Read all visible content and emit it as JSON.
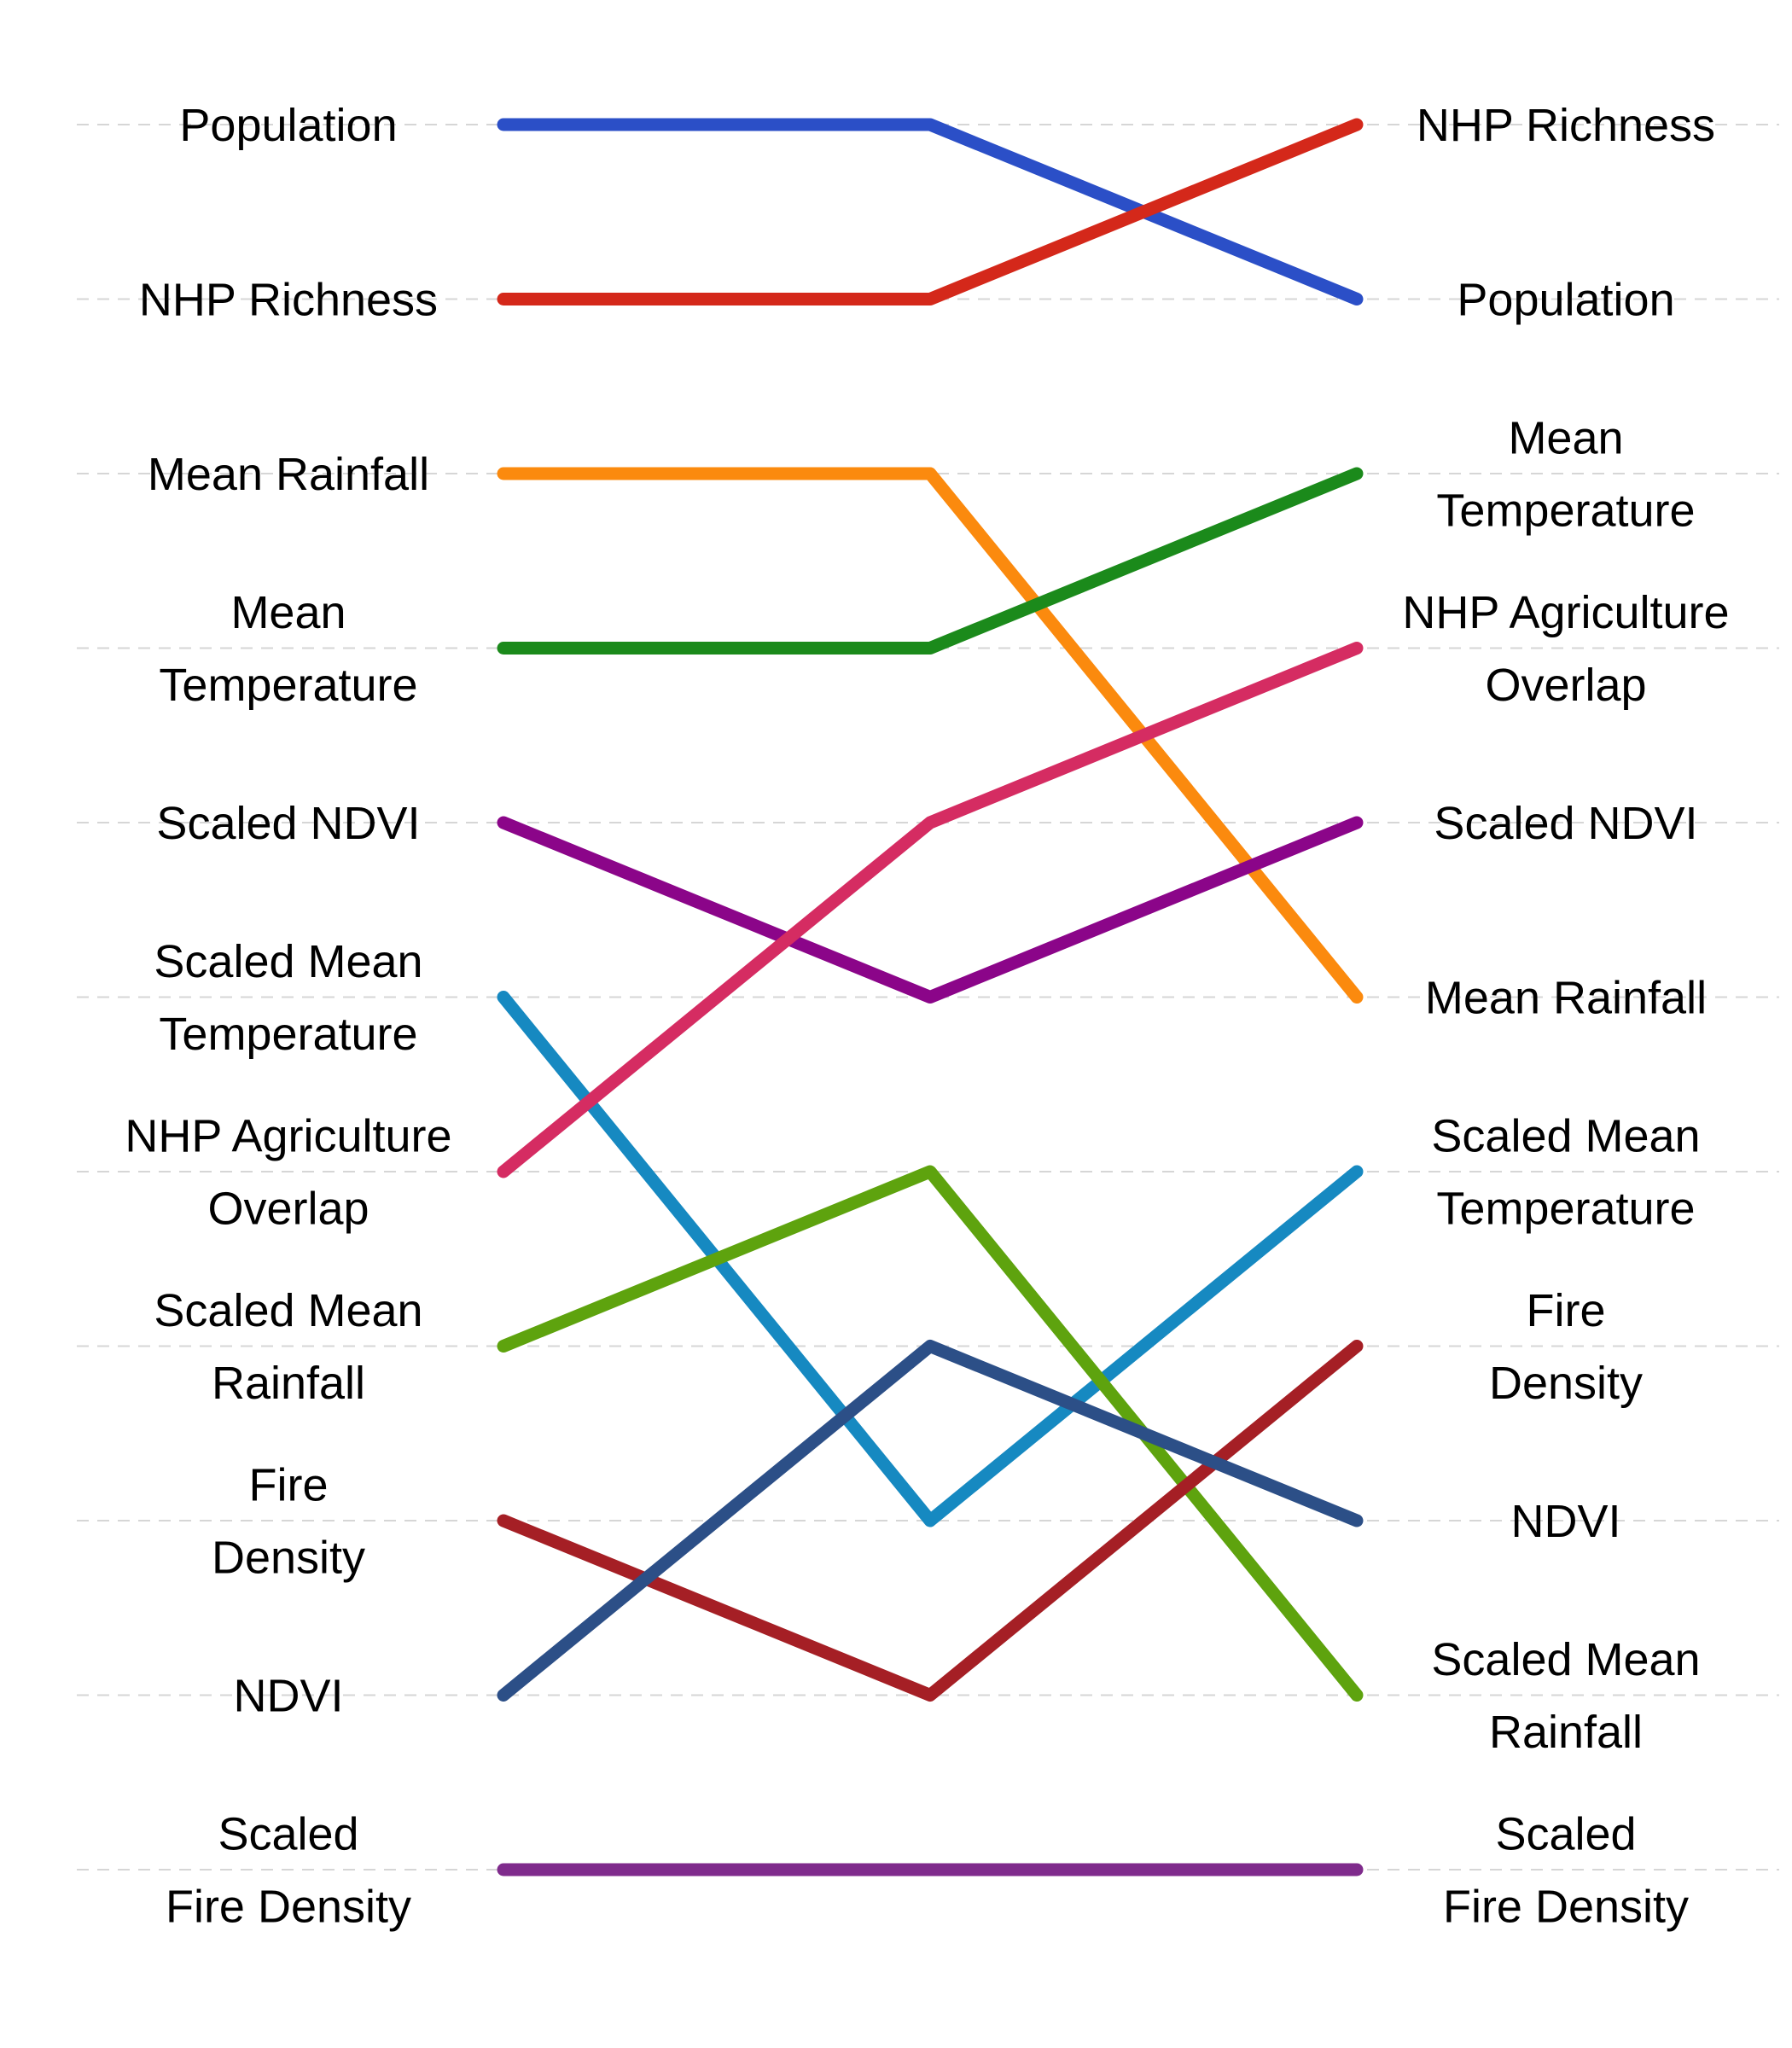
{
  "chart_data": {
    "type": "line",
    "title": "",
    "xlabel": "",
    "ylabel": "",
    "x": [
      1,
      2,
      3
    ],
    "ylim": [
      1,
      11
    ],
    "y_inverted": true,
    "grid": "horizontal dashed",
    "legend": "none",
    "left_labels": [
      [
        "Population"
      ],
      [
        "NHP Richness"
      ],
      [
        "Mean Rainfall"
      ],
      [
        "Mean",
        "Temperature"
      ],
      [
        "Scaled NDVI"
      ],
      [
        "Scaled Mean",
        "Temperature"
      ],
      [
        "NHP Agriculture",
        "Overlap"
      ],
      [
        "Scaled Mean",
        "Rainfall"
      ],
      [
        "Fire",
        "Density"
      ],
      [
        "NDVI"
      ],
      [
        "Scaled",
        "Fire Density"
      ]
    ],
    "right_labels": [
      [
        "NHP Richness"
      ],
      [
        "Population"
      ],
      [
        "Mean",
        "Temperature"
      ],
      [
        "NHP Agriculture",
        "Overlap"
      ],
      [
        "Scaled NDVI"
      ],
      [
        "Mean Rainfall"
      ],
      [
        "Scaled Mean",
        "Temperature"
      ],
      [
        "Fire",
        "Density"
      ],
      [
        "NDVI"
      ],
      [
        "Scaled Mean",
        "Rainfall"
      ],
      [
        "Scaled",
        "Fire Density"
      ]
    ],
    "series": [
      {
        "color": "#2b4fc7",
        "values": [
          1,
          1,
          2
        ]
      },
      {
        "color": "#d4281a",
        "values": [
          2,
          2,
          1
        ]
      },
      {
        "color": "#fb8a0e",
        "values": [
          3,
          3,
          6
        ]
      },
      {
        "color": "#1b8a1b",
        "values": [
          4,
          4,
          3
        ]
      },
      {
        "color": "#8b0589",
        "values": [
          5,
          6,
          5
        ]
      },
      {
        "color": "#1689c1",
        "values": [
          6,
          9,
          7
        ]
      },
      {
        "color": "#d52c62",
        "values": [
          7,
          5,
          4
        ]
      },
      {
        "color": "#5ea30e",
        "values": [
          8,
          7,
          10
        ]
      },
      {
        "color": "#a51f25",
        "values": [
          9,
          10,
          8
        ]
      },
      {
        "color": "#2c4f87",
        "values": [
          10,
          8,
          9
        ]
      },
      {
        "color": "#7f2b8c",
        "values": [
          11,
          11,
          11
        ]
      }
    ]
  }
}
